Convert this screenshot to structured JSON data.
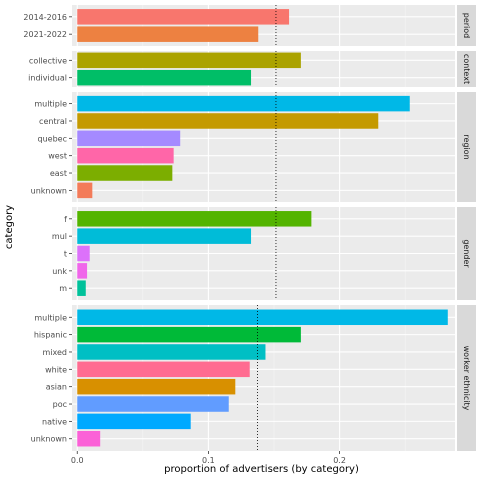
{
  "chart_data": {
    "type": "bar",
    "orientation": "horizontal",
    "xlabel": "proportion of advertisers (by category)",
    "ylabel": "category",
    "xlim": [
      -0.004,
      0.288
    ],
    "x_ticks": [
      0.0,
      0.1,
      0.2
    ],
    "x_tick_labels": [
      "0.0",
      "0.1",
      "0.2"
    ],
    "grid": true,
    "facets": [
      {
        "name": "period",
        "reference_line": 0.1515,
        "categories": [
          "2014-2016",
          "2021-2022"
        ],
        "values": [
          0.1615,
          0.138
        ],
        "colors": [
          "#F8766D",
          "#ED8141"
        ]
      },
      {
        "name": "context",
        "reference_line": 0.1515,
        "categories": [
          "collective",
          "individual"
        ],
        "values": [
          0.1705,
          0.1325
        ],
        "colors": [
          "#ABA300",
          "#00BE67"
        ]
      },
      {
        "name": "region",
        "reference_line": 0.1515,
        "categories": [
          "multiple",
          "central",
          "quebec",
          "west",
          "east",
          "unknown"
        ],
        "values": [
          0.2535,
          0.2295,
          0.0785,
          0.0735,
          0.0725,
          0.0115
        ],
        "colors": [
          "#00B8E7",
          "#C49A00",
          "#A58AFF",
          "#FF66A8",
          "#7CAE00",
          "#F37B59"
        ]
      },
      {
        "name": "gender",
        "reference_line": 0.1515,
        "categories": [
          "f",
          "mul",
          "t",
          "unk",
          "m"
        ],
        "values": [
          0.1785,
          0.1325,
          0.0095,
          0.0075,
          0.0065
        ],
        "colors": [
          "#53B400",
          "#00BCD8",
          "#DC71FA",
          "#F066EA",
          "#00C19A"
        ]
      },
      {
        "name": "worker ethnicity",
        "reference_line": 0.1375,
        "categories": [
          "multiple",
          "hispanic",
          "mixed",
          "white",
          "asian",
          "poc",
          "native",
          "unknown"
        ],
        "values": [
          0.2825,
          0.1705,
          0.1435,
          0.1315,
          0.1205,
          0.1155,
          0.0865,
          0.0175
        ],
        "colors": [
          "#00B8E7",
          "#00BA38",
          "#00BFC4",
          "#FF6C91",
          "#D89000",
          "#619CFF",
          "#00A9FF",
          "#FB61D7"
        ]
      }
    ]
  }
}
